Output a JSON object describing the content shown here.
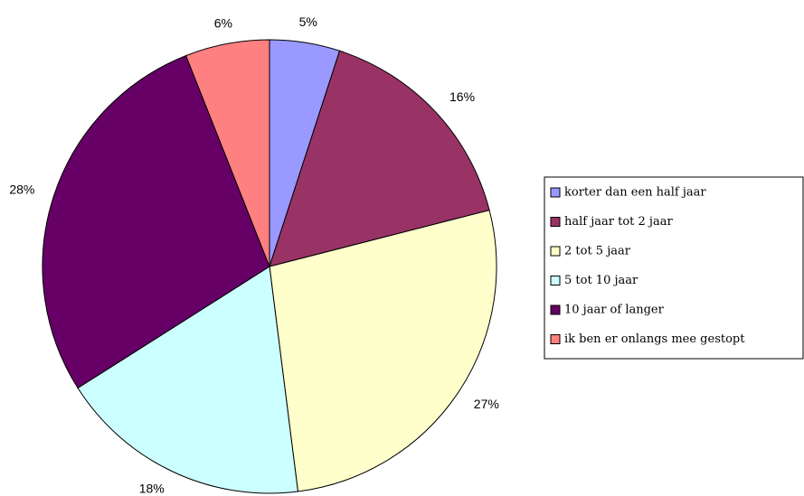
{
  "chart_data": {
    "type": "pie",
    "categories": [
      "korter dan een half jaar",
      "half jaar tot 2 jaar",
      "2 tot 5 jaar",
      "5 tot 10 jaar",
      "10 jaar of langer",
      "ik ben er onlangs mee gestopt"
    ],
    "values": [
      5,
      16,
      27,
      18,
      28,
      6
    ],
    "value_labels": [
      "5%",
      "16%",
      "27%",
      "18%",
      "28%",
      "6%"
    ],
    "colors": [
      "#9999ff",
      "#993366",
      "#ffffcc",
      "#ccffff",
      "#660066",
      "#ff8080"
    ],
    "legend": "right"
  }
}
